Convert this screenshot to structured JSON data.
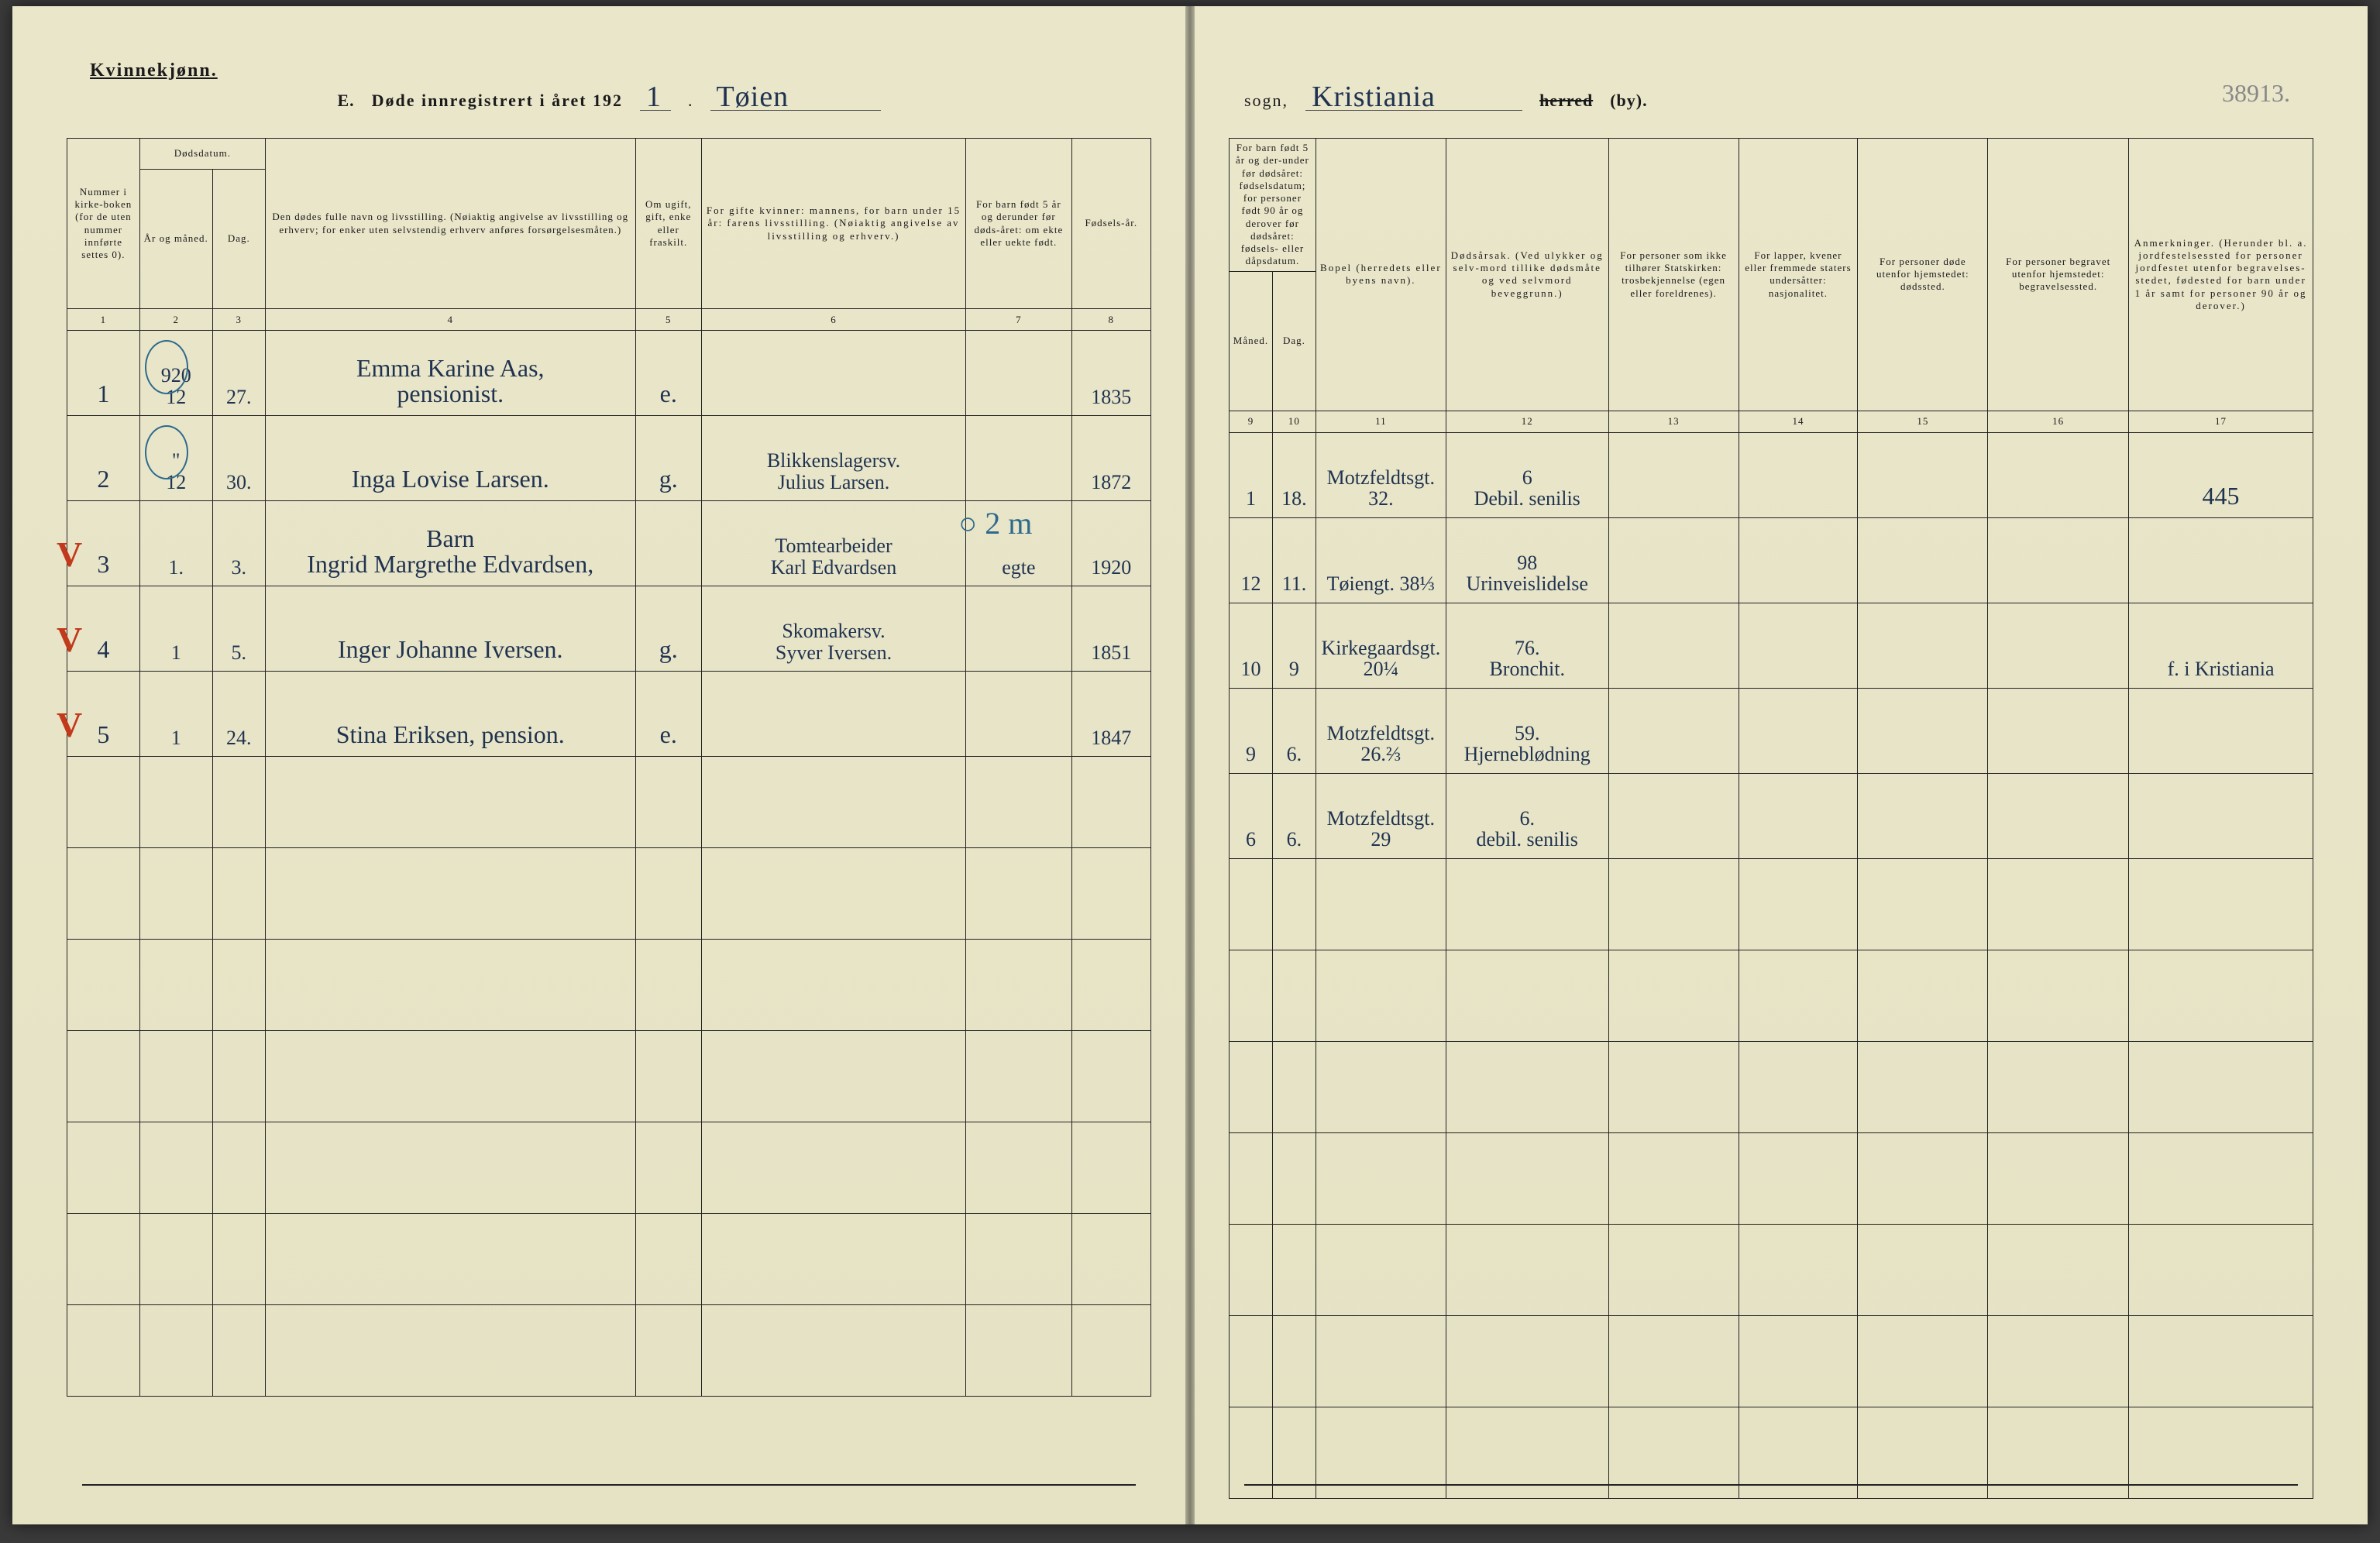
{
  "header": {
    "gender": "Kvinnekjønn.",
    "form_letter": "E.",
    "title_template": "Døde innregistrert i året 192",
    "year_suffix": "1",
    "parish_hand": "Tøien",
    "sogn_label": "sogn,",
    "municipality_hand": "Kristiania",
    "herred_struck": "herred",
    "by_suffix": "(by).",
    "corner_note": "38913."
  },
  "columns_left": {
    "c1": "Nummer i kirke-boken (for de uten nummer innførte settes 0).",
    "c2_top": "Dødsdatum.",
    "c2a": "År og måned.",
    "c2b": "Dag.",
    "c4": "Den dødes fulle navn og livsstilling. (Nøiaktig angivelse av livsstilling og erhverv; for enker uten selvstendig erhverv anføres forsørgelsesmåten.)",
    "c5": "Om ugift, gift, enke eller fraskilt.",
    "c6": "For gifte kvinner: mannens, for barn under 15 år: farens livsstilling. (Nøiaktig angivelse av livsstilling og erhverv.)",
    "c7": "For barn født 5 år og derunder før døds-året: om ekte eller uekte født.",
    "c8": "Fødsels-år."
  },
  "columns_right": {
    "c9_top": "For barn født 5 år og der-under før dødsåret: fødselsdatum; for personer født 90 år og derover før dødsåret: fødsels- eller dåpsdatum.",
    "c9a": "Måned.",
    "c9b": "Dag.",
    "c11": "Bopel (herredets eller byens navn).",
    "c12": "Dødsårsak. (Ved ulykker og selv-mord tillike dødsmåte og ved selvmord beveggrunn.)",
    "c13": "For personer som ikke tilhører Statskirken: trosbekjennelse (egen eller foreldrenes).",
    "c14": "For lapper, kvener eller fremmede staters undersåtter: nasjonalitet.",
    "c15": "For personer døde utenfor hjemstedet: dødssted.",
    "c16": "For personer begravet utenfor hjemstedet: begravelsessted.",
    "c17": "Anmerkninger. (Herunder bl. a. jordfestelsessted for personer jordfestet utenfor begravelses-stedet, fødested for barn under 1 år samt for personer 90 år og derover.)"
  },
  "colnums_left": [
    "1",
    "2",
    "3",
    "4",
    "5",
    "6",
    "7",
    "8"
  ],
  "colnums_right": [
    "9",
    "10",
    "11",
    "12",
    "13",
    "14",
    "15",
    "16",
    "17"
  ],
  "rows": [
    {
      "num": "1",
      "circle": true,
      "tick": false,
      "year_month": "920\n12",
      "day": "27.",
      "name": "Emma Karine Aas,\n                      pensionist.",
      "status": "e.",
      "spouse": "",
      "legit": "",
      "birthyear": "1835",
      "bm": "1",
      "bd": "18.",
      "residence": "Motzfeldtsgt.\n32.",
      "cause": "6\nDebil. senilis",
      "c13": "",
      "c14": "",
      "c15": "",
      "c16": "",
      "remarks": "445"
    },
    {
      "num": "2",
      "circle": true,
      "tick": false,
      "year_month": "\"\n12",
      "day": "30.",
      "name": "Inga Lovise Larsen.",
      "status": "g.",
      "spouse": "Blikkenslagersv.\nJulius Larsen.",
      "legit": "",
      "birthyear": "1872",
      "bm": "12",
      "bd": "11.",
      "residence": "Tøiengt. 38⅓",
      "cause": "98\nUrinveislidelse",
      "c13": "",
      "c14": "",
      "c15": "",
      "c16": "",
      "remarks": ""
    },
    {
      "num": "3",
      "circle": false,
      "tick": true,
      "year_month": "1.",
      "day": "3.",
      "name": "Barn\nIngrid Margrethe Edvardsen,",
      "status": "",
      "spouse": "Tomtearbeider\nKarl Edvardsen",
      "legit": "egte",
      "birthyear": "1920",
      "overlay": "○ 2 m",
      "bm": "10",
      "bd": "9",
      "residence": "Kirkegaardsgt.\n20¼",
      "cause": "76.\nBronchit.",
      "c13": "",
      "c14": "",
      "c15": "",
      "c16": "",
      "remarks": "f. i Kristiania"
    },
    {
      "num": "4",
      "circle": false,
      "tick": true,
      "year_month": "1",
      "day": "5.",
      "name": "Inger Johanne Iversen.",
      "status": "g.",
      "spouse": "Skomakersv.\nSyver Iversen.",
      "legit": "",
      "birthyear": "1851",
      "bm": "9",
      "bd": "6.",
      "residence": "Motzfeldtsgt.\n26.⅔",
      "cause": "59.\nHjerneblødning",
      "c13": "",
      "c14": "",
      "c15": "",
      "c16": "",
      "remarks": ""
    },
    {
      "num": "5",
      "circle": false,
      "tick": true,
      "year_month": "1",
      "day": "24.",
      "name": "Stina Eriksen, pension.",
      "status": "e.",
      "spouse": "",
      "legit": "",
      "birthyear": "1847",
      "bm": "6",
      "bd": "6.",
      "residence": "Motzfeldtsgt.\n29",
      "cause": "6.\ndebil. senilis",
      "c13": "",
      "c14": "",
      "c15": "",
      "c16": "",
      "remarks": ""
    }
  ],
  "style": {
    "page_bg": "#e8e4c8",
    "ink_hand": "#1f3350",
    "ink_red": "#c23a1c",
    "ink_pencil": "#888888",
    "border": "#222222"
  }
}
